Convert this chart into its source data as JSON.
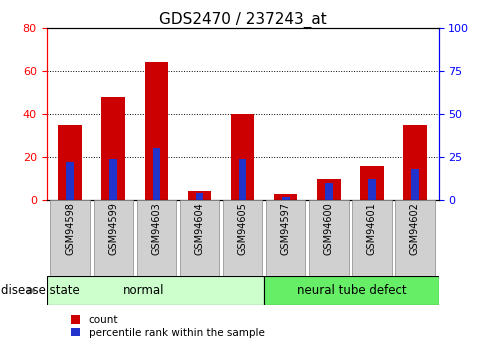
{
  "title": "GDS2470 / 237243_at",
  "categories": [
    "GSM94598",
    "GSM94599",
    "GSM94603",
    "GSM94604",
    "GSM94605",
    "GSM94597",
    "GSM94600",
    "GSM94601",
    "GSM94602"
  ],
  "count_values": [
    35,
    48,
    64,
    4,
    40,
    3,
    10,
    16,
    35
  ],
  "percentile_values": [
    22,
    24,
    30,
    4,
    24,
    2,
    10,
    12,
    18
  ],
  "left_ylim": [
    0,
    80
  ],
  "right_ylim": [
    0,
    100
  ],
  "left_yticks": [
    0,
    20,
    40,
    60,
    80
  ],
  "right_yticks": [
    0,
    25,
    50,
    75,
    100
  ],
  "bar_color": "#cc0000",
  "percentile_color": "#2233cc",
  "bar_width": 0.55,
  "percentile_bar_width": 0.18,
  "normal_label": "normal",
  "disease_label": "neural tube defect",
  "disease_state_label": "disease state",
  "legend_count": "count",
  "legend_percentile": "percentile rank within the sample",
  "normal_bg": "#ccffcc",
  "disease_bg": "#66ee66",
  "tick_bg": "#d0d0d0",
  "title_fontsize": 11,
  "axis_fontsize": 8,
  "label_fontsize": 8.5,
  "tick_label_fontsize": 7
}
